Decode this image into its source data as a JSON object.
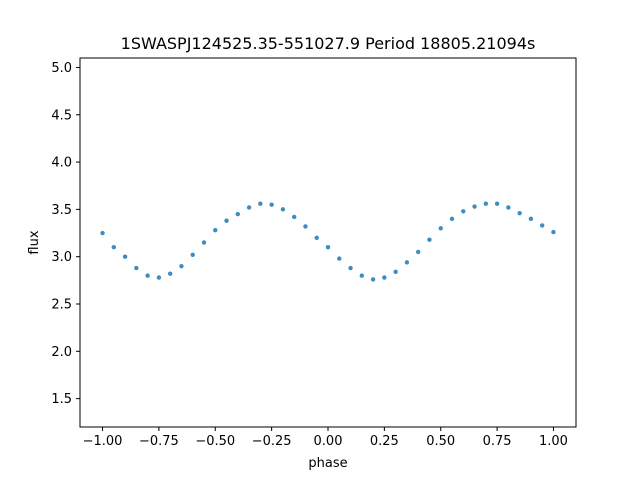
{
  "chart_data": {
    "type": "scatter",
    "title": "1SWASPJ124525.35-551027.9 Period 18805.21094s",
    "xlabel": "phase",
    "ylabel": "flux",
    "xlim": [
      -1.1,
      1.1
    ],
    "ylim": [
      1.2,
      5.1
    ],
    "xticks": [
      -1.0,
      -0.75,
      -0.5,
      -0.25,
      0.0,
      0.25,
      0.5,
      0.75,
      1.0
    ],
    "xtick_labels": [
      "−1.00",
      "−0.75",
      "−0.50",
      "−0.25",
      "0.00",
      "0.25",
      "0.50",
      "0.75",
      "1.00"
    ],
    "yticks": [
      1.5,
      2.0,
      2.5,
      3.0,
      3.5,
      4.0,
      4.5,
      5.0
    ],
    "ytick_labels": [
      "1.5",
      "2.0",
      "2.5",
      "3.0",
      "3.5",
      "4.0",
      "4.5",
      "5.0"
    ],
    "grid": false,
    "marker_color": "#1f77b4",
    "series": [
      {
        "x": [
          -1.0,
          -0.95,
          -0.9,
          -0.85,
          -0.8,
          -0.75,
          -0.7,
          -0.65,
          -0.6,
          -0.55,
          -0.5,
          -0.45,
          -0.4,
          -0.35,
          -0.3,
          -0.25,
          -0.2,
          -0.15,
          -0.1,
          -0.05,
          0.0,
          0.05,
          0.1,
          0.15,
          0.2,
          0.25,
          0.3,
          0.35,
          0.4,
          0.45,
          0.5,
          0.55,
          0.6,
          0.65,
          0.7,
          0.75,
          0.8,
          0.85,
          0.9,
          0.95,
          1.0
        ],
        "y": [
          3.25,
          3.1,
          3.0,
          2.88,
          2.8,
          2.78,
          2.82,
          2.9,
          3.02,
          3.15,
          3.28,
          3.38,
          3.45,
          3.52,
          3.56,
          3.55,
          3.5,
          3.42,
          3.32,
          3.2,
          3.1,
          2.98,
          2.88,
          2.8,
          2.76,
          2.78,
          2.84,
          2.94,
          3.05,
          3.18,
          3.3,
          3.4,
          3.48,
          3.53,
          3.56,
          3.56,
          3.52,
          3.46,
          3.4,
          3.33,
          3.26
        ]
      }
    ]
  }
}
